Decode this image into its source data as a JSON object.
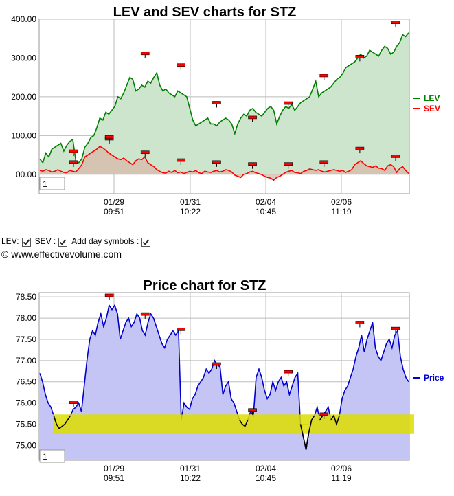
{
  "chart_data": [
    {
      "type": "line",
      "title": "LEV and SEV charts for STZ",
      "ylim": [
        -50,
        400
      ],
      "y_ticks": [
        "400.00",
        "300.00",
        "200.00",
        "100.00",
        "00.00"
      ],
      "x_ticks": [
        {
          "date": "01/29",
          "time": "09:51"
        },
        {
          "date": "01/31",
          "time": "10:22"
        },
        {
          "date": "02/04",
          "time": "10:45"
        },
        {
          "date": "02/06",
          "time": "11:19"
        }
      ],
      "zoom_box": "1",
      "grid": true,
      "legend_position": "right",
      "series": [
        {
          "name": "LEV",
          "color": "#008000",
          "fill": "#cce5cc",
          "values": [
            40,
            30,
            55,
            45,
            65,
            70,
            75,
            80,
            60,
            75,
            85,
            90,
            35,
            30,
            40,
            70,
            80,
            95,
            100,
            120,
            145,
            140,
            160,
            155,
            165,
            175,
            200,
            195,
            210,
            230,
            250,
            245,
            215,
            220,
            230,
            225,
            240,
            235,
            250,
            262,
            230,
            215,
            220,
            210,
            205,
            200,
            215,
            210,
            205,
            200,
            170,
            140,
            125,
            130,
            135,
            140,
            145,
            130,
            130,
            125,
            135,
            140,
            145,
            140,
            130,
            105,
            130,
            145,
            155,
            150,
            165,
            170,
            160,
            155,
            150,
            160,
            170,
            175,
            165,
            130,
            150,
            165,
            175,
            170,
            180,
            165,
            175,
            185,
            190,
            195,
            200,
            220,
            240,
            200,
            210,
            215,
            220,
            225,
            235,
            245,
            250,
            260,
            275,
            280,
            285,
            290,
            300,
            310,
            300,
            305,
            320,
            315,
            310,
            305,
            320,
            330,
            325,
            310,
            315,
            330,
            340,
            360,
            355,
            365
          ]
        },
        {
          "name": "SEV",
          "color": "#ff0000",
          "fill": "#d9b8a9",
          "values": [
            10,
            8,
            12,
            10,
            6,
            8,
            12,
            8,
            5,
            4,
            10,
            8,
            6,
            15,
            25,
            45,
            50,
            55,
            60,
            65,
            72,
            68,
            62,
            55,
            50,
            45,
            40,
            38,
            42,
            35,
            30,
            25,
            35,
            40,
            38,
            45,
            30,
            25,
            20,
            12,
            8,
            4,
            3,
            8,
            5,
            10,
            4,
            6,
            2,
            5,
            8,
            6,
            10,
            4,
            2,
            8,
            6,
            5,
            8,
            10,
            6,
            8,
            12,
            10,
            6,
            -2,
            -5,
            -8,
            0,
            2,
            6,
            8,
            4,
            2,
            -1,
            -5,
            -8,
            -10,
            -15,
            -8,
            -5,
            0,
            5,
            8,
            10,
            5,
            4,
            2,
            8,
            10,
            14,
            12,
            10,
            12,
            8,
            6,
            8,
            10,
            12,
            10,
            8,
            10,
            5,
            8,
            12,
            25,
            30,
            35,
            28,
            22,
            20,
            18,
            22,
            16,
            15,
            10,
            22,
            25,
            20,
            5,
            15,
            20,
            10,
            2
          ]
        }
      ],
      "day_markers": {
        "LEV": [
          58,
          90,
          310,
          280,
          183,
          145,
          182,
          253,
          302,
          390
        ],
        "SEV": [
          30,
          95,
          55,
          35,
          30,
          25,
          25,
          30,
          65,
          45
        ]
      }
    },
    {
      "type": "line",
      "title": "Price chart for STZ",
      "ylim": [
        74.65,
        78.6
      ],
      "y_ticks": [
        "78.50",
        "78.00",
        "77.50",
        "77.00",
        "76.50",
        "76.00",
        "75.50",
        "75.00"
      ],
      "x_ticks": [
        {
          "date": "01/29",
          "time": "09:51"
        },
        {
          "date": "01/31",
          "time": "10:22"
        },
        {
          "date": "02/04",
          "time": "10:45"
        },
        {
          "date": "02/06",
          "time": "11:19"
        }
      ],
      "zoom_box": "1",
      "grid": true,
      "legend_position": "right",
      "support_band": [
        75.27,
        75.73
      ],
      "series": [
        {
          "name": "Price",
          "color": "#0000cc",
          "fill": "#c5c5f5",
          "values": [
            76.7,
            76.5,
            76.2,
            76.0,
            75.9,
            75.7,
            75.5,
            75.4,
            75.45,
            75.5,
            75.6,
            75.7,
            75.85,
            75.9,
            76.0,
            75.8,
            76.4,
            77.0,
            77.5,
            77.7,
            77.6,
            77.9,
            78.1,
            77.8,
            78.0,
            78.3,
            78.2,
            78.3,
            78.1,
            77.5,
            77.7,
            77.9,
            78.0,
            77.8,
            77.9,
            78.1,
            78.0,
            77.7,
            77.6,
            77.9,
            78.1,
            78.0,
            77.8,
            77.6,
            77.4,
            77.3,
            77.5,
            77.6,
            77.7,
            77.6,
            77.7,
            75.6,
            76.0,
            75.9,
            75.85,
            76.1,
            76.2,
            76.4,
            76.5,
            76.6,
            76.8,
            76.7,
            76.8,
            77.0,
            76.9,
            76.85,
            76.2,
            76.4,
            76.5,
            76.1,
            76.0,
            75.8,
            75.6,
            75.5,
            75.45,
            75.6,
            75.8,
            75.7,
            76.6,
            76.8,
            76.6,
            76.3,
            76.1,
            76.2,
            76.5,
            76.3,
            76.5,
            76.6,
            76.4,
            76.5,
            76.2,
            76.4,
            76.6,
            76.7,
            75.5,
            75.2,
            74.9,
            75.3,
            75.6,
            75.7,
            75.9,
            75.6,
            75.7,
            75.8,
            75.9,
            75.6,
            75.7,
            75.5,
            75.7,
            76.1,
            76.3,
            76.4,
            76.6,
            76.8,
            77.1,
            77.3,
            77.6,
            77.2,
            77.5,
            77.7,
            77.9,
            77.3,
            77.1,
            77.0,
            77.2,
            77.4,
            77.5,
            77.3,
            77.6,
            77.7,
            77.1,
            76.8,
            76.6,
            76.5
          ]
        }
      ],
      "day_markers": {
        "Price": [
          76.0,
          78.52,
          78.08,
          77.72,
          76.9,
          75.82,
          76.72,
          75.72,
          77.88,
          77.74
        ]
      }
    }
  ],
  "controls": {
    "lev_label": "LEV:",
    "sev_label": "SEV :",
    "day_symbols_label": "Add day symbols :"
  },
  "copyright": "© www.effectivevolume.com"
}
